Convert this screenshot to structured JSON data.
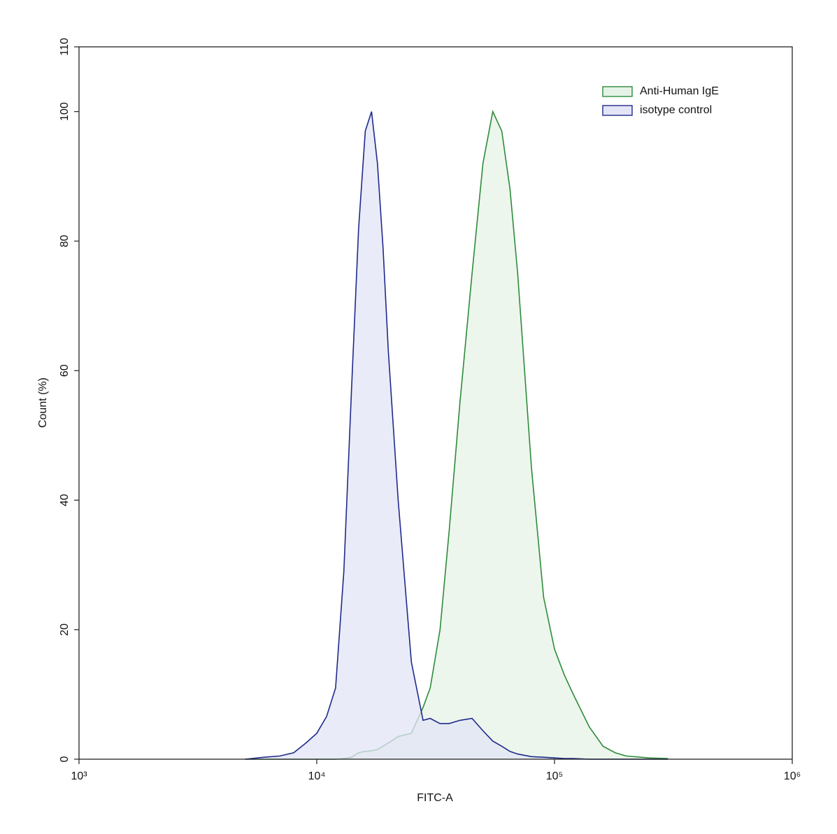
{
  "chart_data": {
    "type": "histogram-overlay",
    "x_label": "FITC-A",
    "y_label": "Count (%)",
    "xscale": "log",
    "xlim": [
      1000,
      1000000
    ],
    "ylim": [
      0,
      110
    ],
    "xticks": [
      {
        "value": 1000,
        "label": "10³"
      },
      {
        "value": 10000,
        "label": "10⁴"
      },
      {
        "value": 100000,
        "label": "10⁵"
      },
      {
        "value": 1000000,
        "label": "10⁶"
      }
    ],
    "yticks": [
      0,
      20,
      40,
      60,
      80,
      100,
      110
    ],
    "legend": "top-right",
    "x": [
      5000,
      6000,
      7000,
      8000,
      9000,
      10000,
      11000,
      12000,
      13000,
      14000,
      15000,
      16000,
      17000,
      18000,
      19000,
      20000,
      22000,
      25000,
      28000,
      30000,
      33000,
      36000,
      40000,
      45000,
      50000,
      55000,
      60000,
      65000,
      70000,
      80000,
      90000,
      100000,
      110000,
      120000,
      140000,
      160000,
      180000,
      200000,
      250000,
      300000
    ],
    "series": [
      {
        "name": "Anti-Human IgE",
        "color": "#2e8b3a",
        "fill": "#e5f3e6",
        "values": [
          0,
          0,
          0,
          0,
          0,
          0,
          0,
          0,
          0.1,
          0.3,
          1,
          1.2,
          1.3,
          1.5,
          2,
          2.5,
          3.5,
          4,
          8,
          11,
          20,
          35,
          55,
          75,
          92,
          100,
          97,
          88,
          75,
          45,
          25,
          17,
          13,
          10,
          5,
          2,
          1,
          0.5,
          0.2,
          0.1
        ]
      },
      {
        "name": "isotype control",
        "color": "#1f2a8a",
        "fill": "#e3e4f6",
        "values": [
          0,
          0.3,
          0.5,
          1,
          2.5,
          4,
          6.6,
          11,
          29,
          57,
          82,
          97,
          100,
          92,
          79,
          63,
          40,
          15,
          6,
          6.3,
          5.5,
          5.5,
          6,
          6.3,
          4.4,
          2.8,
          2,
          1.2,
          0.8,
          0.4,
          0.3,
          0.2,
          0.1,
          0.1,
          0,
          0,
          0,
          0,
          0,
          0
        ]
      }
    ]
  }
}
